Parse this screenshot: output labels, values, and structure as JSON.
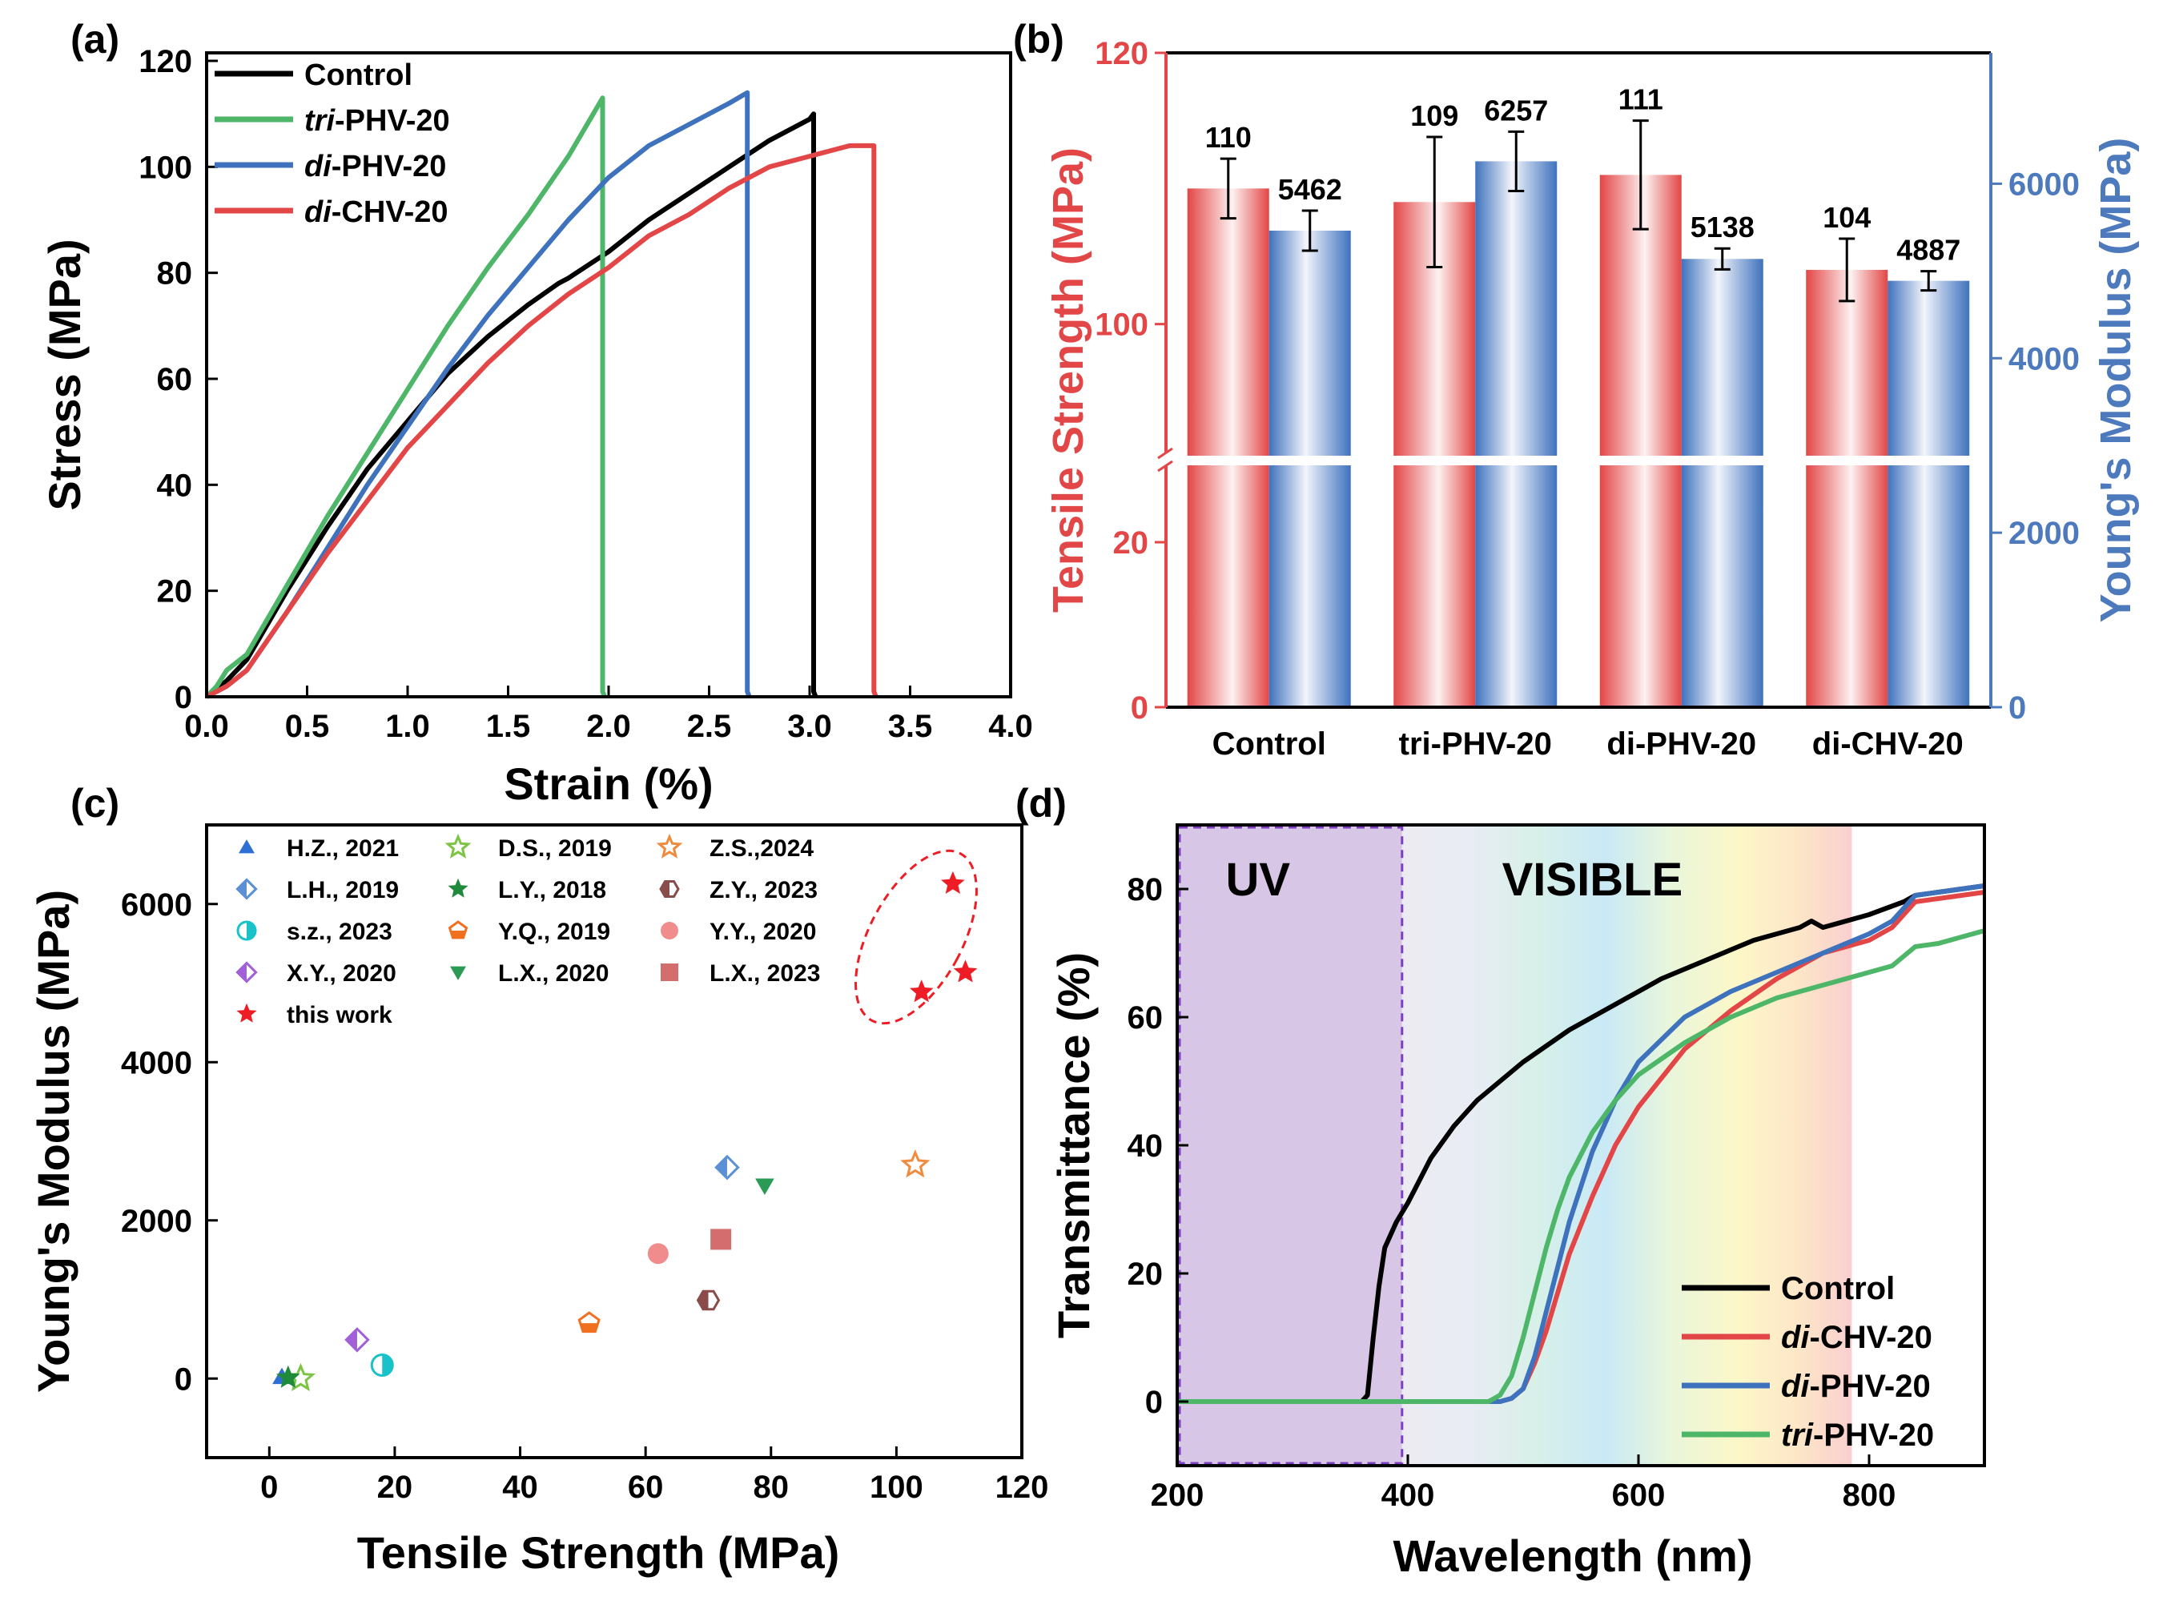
{
  "figure": {
    "panel_labels": [
      "(a)",
      "(b)",
      "(c)",
      "(d)"
    ]
  },
  "colors": {
    "black": "#000000",
    "green": "#4eb668",
    "blue": "#3f72bd",
    "red": "#e34646",
    "right_axis_blue": "#4d79bd",
    "uv_purple": "#d7c6e6",
    "uv_border": "#7b3fc0"
  },
  "chart_data": [
    {
      "id": "a",
      "type": "line",
      "title": "",
      "xlabel": "Strain (%)",
      "ylabel": "Stress (MPa)",
      "xlim": [
        0,
        4
      ],
      "ylim": [
        0,
        120
      ],
      "xticks": [
        0,
        0.5,
        1,
        1.5,
        2,
        2.5,
        3,
        3.5,
        4
      ],
      "xticklabels": [
        "0.0",
        "0.5",
        "1.0",
        "1.5",
        "2.0",
        "2.5",
        "3.0",
        "3.5",
        "4.0"
      ],
      "yticks": [
        0,
        20,
        40,
        60,
        80,
        100,
        120
      ],
      "legend_position": "top-left",
      "series": [
        {
          "name": "Control",
          "name_parts": [
            "",
            "Control"
          ],
          "color": "#000000",
          "x": [
            0,
            0.1,
            0.2,
            0.4,
            0.6,
            0.8,
            1.0,
            1.2,
            1.4,
            1.6,
            1.75,
            1.8,
            2.0,
            2.2,
            2.4,
            2.6,
            2.8,
            3.0,
            3.02,
            3.02,
            3.03
          ],
          "y": [
            0,
            3,
            7,
            20,
            32,
            43,
            52,
            61,
            68,
            74,
            78,
            79,
            84,
            90,
            95,
            100,
            105,
            109,
            110,
            1,
            0
          ]
        },
        {
          "name": "tri-PHV-20",
          "name_parts": [
            "tri",
            "-PHV-20"
          ],
          "color": "#4eb668",
          "x": [
            0,
            0.05,
            0.1,
            0.2,
            0.4,
            0.6,
            0.8,
            1.0,
            1.2,
            1.4,
            1.6,
            1.8,
            1.97,
            1.97,
            1.98
          ],
          "y": [
            0,
            2,
            5,
            8,
            21,
            34,
            46,
            58,
            70,
            81,
            91,
            102,
            113,
            1,
            0
          ]
        },
        {
          "name": "di-PHV-20",
          "name_parts": [
            "di",
            "-PHV-20"
          ],
          "color": "#3f72bd",
          "x": [
            0,
            0.1,
            0.2,
            0.4,
            0.6,
            0.8,
            1.0,
            1.2,
            1.4,
            1.6,
            1.8,
            2.0,
            2.2,
            2.4,
            2.6,
            2.69,
            2.69,
            2.7
          ],
          "y": [
            0,
            2,
            5,
            16,
            28,
            40,
            51,
            62,
            72,
            81,
            90,
            98,
            104,
            108,
            112,
            114,
            1,
            0
          ]
        },
        {
          "name": "di-CHV-20",
          "name_parts": [
            "di",
            "-CHV-20"
          ],
          "color": "#e34646",
          "x": [
            0,
            0.1,
            0.2,
            0.4,
            0.6,
            0.8,
            1.0,
            1.2,
            1.4,
            1.6,
            1.8,
            2.0,
            2.2,
            2.4,
            2.6,
            2.8,
            3.0,
            3.2,
            3.32,
            3.32,
            3.33
          ],
          "y": [
            0,
            2,
            5,
            16,
            27,
            37,
            47,
            55,
            63,
            70,
            76,
            81,
            87,
            91,
            96,
            100,
            102,
            104,
            104,
            1,
            0
          ]
        }
      ]
    },
    {
      "id": "b",
      "type": "bar",
      "categories": [
        "Control",
        "tri-PHV-20",
        "di-PHV-20",
        "di-CHV-20"
      ],
      "ylabel_left": "Tensile Strength (MPa)",
      "ylabel_right": "Young's Modulus (MPa)",
      "ylim_left_lower": [
        0,
        30
      ],
      "ylim_left_upper": [
        90,
        120
      ],
      "yticks_left": [
        0,
        20,
        100,
        120
      ],
      "ylim_right": [
        0,
        7500
      ],
      "yticks_right": [
        0,
        2000,
        4000,
        6000
      ],
      "series": [
        {
          "name": "Tensile Strength",
          "axis": "left",
          "color": "#e34646",
          "values": [
            110,
            109,
            111,
            104
          ],
          "errors": [
            2.2,
            4.8,
            4.0,
            2.3
          ],
          "labels": [
            "110",
            "109",
            "111",
            "104"
          ]
        },
        {
          "name": "Young's Modulus",
          "axis": "right",
          "color": "#3f72bd",
          "values": [
            5462,
            6257,
            5138,
            4887
          ],
          "errors": [
            230,
            340,
            120,
            110
          ],
          "labels": [
            "5462",
            "6257",
            "5138",
            "4887"
          ]
        }
      ]
    },
    {
      "id": "c",
      "type": "scatter",
      "xlabel": "Tensile Strength (MPa)",
      "ylabel": "Young's Modulus (MPa)",
      "xlim": [
        -10,
        120
      ],
      "ylim": [
        -1000,
        7000
      ],
      "xticks": [
        0,
        20,
        40,
        60,
        80,
        100,
        120
      ],
      "yticks": [
        0,
        2000,
        4000,
        6000
      ],
      "legend_position": "top-left",
      "series": [
        {
          "name": "H.Z., 2021",
          "marker": "triangle",
          "color": "#2e6fd6",
          "x": [
            2
          ],
          "y": [
            20
          ]
        },
        {
          "name": "D.S., 2019",
          "marker": "star-open",
          "color": "#7cc443",
          "x": [
            5
          ],
          "y": [
            0
          ]
        },
        {
          "name": "Z.S.,2024",
          "marker": "star-open",
          "color": "#f08a3c",
          "x": [
            103
          ],
          "y": [
            2700
          ]
        },
        {
          "name": "L.H., 2019",
          "marker": "diamond-half",
          "color": "#5b8fd6",
          "x": [
            73
          ],
          "y": [
            2670
          ]
        },
        {
          "name": "L.Y., 2018",
          "marker": "star",
          "color": "#1f8a3a",
          "x": [
            3
          ],
          "y": [
            10
          ]
        },
        {
          "name": "Z.Y., 2023",
          "marker": "hexagon-half",
          "color": "#8a4b4b",
          "x": [
            70
          ],
          "y": [
            990
          ]
        },
        {
          "name": "s.z., 2023",
          "marker": "circle-half",
          "color": "#19c2c8",
          "x": [
            18
          ],
          "y": [
            170
          ]
        },
        {
          "name": "Y.Q., 2019",
          "marker": "pentagon-half",
          "color": "#f07020",
          "x": [
            51
          ],
          "y": [
            700
          ]
        },
        {
          "name": "Y.Y., 2020",
          "marker": "circle",
          "color": "#f08c8c",
          "x": [
            62
          ],
          "y": [
            1580
          ]
        },
        {
          "name": "X.Y., 2020",
          "marker": "diamond-half",
          "color": "#a260d8",
          "x": [
            14
          ],
          "y": [
            490
          ]
        },
        {
          "name": "L.X., 2020",
          "marker": "triangle-down",
          "color": "#2a9a55",
          "x": [
            79
          ],
          "y": [
            2440
          ]
        },
        {
          "name": "L.X., 2023",
          "marker": "square",
          "color": "#d46e6e",
          "x": [
            72
          ],
          "y": [
            1760
          ]
        },
        {
          "name": "this work",
          "marker": "star",
          "color": "#ee1c24",
          "x": [
            109,
            111,
            104
          ],
          "y": [
            6257,
            5138,
            4887
          ]
        }
      ]
    },
    {
      "id": "d",
      "type": "line",
      "xlabel": "Wavelength (nm)",
      "ylabel": "Transmittance (%)",
      "xlim": [
        200,
        900
      ],
      "ylim": [
        -10,
        90
      ],
      "xticks": [
        200,
        400,
        600,
        800
      ],
      "yticks": [
        0,
        20,
        40,
        60,
        80
      ],
      "region_labels": [
        "UV",
        "VISIBLE"
      ],
      "uv_region": [
        200,
        395
      ],
      "visible_region": [
        395,
        785
      ],
      "legend_position": "bottom-right",
      "series": [
        {
          "name": "Control",
          "name_parts": [
            "",
            "Control"
          ],
          "color": "#000000",
          "x": [
            200,
            360,
            365,
            370,
            375,
            380,
            390,
            400,
            420,
            440,
            460,
            480,
            500,
            540,
            580,
            620,
            660,
            700,
            740,
            750,
            760,
            800,
            830,
            840,
            860,
            900
          ],
          "y": [
            0,
            0,
            1,
            10,
            18,
            24,
            28,
            31,
            38,
            43,
            47,
            50,
            53,
            58,
            62,
            66,
            69,
            72,
            74,
            75,
            74,
            76,
            78,
            79,
            79.5,
            80.5
          ]
        },
        {
          "name": "di-CHV-20",
          "name_parts": [
            "di",
            "-CHV-20"
          ],
          "color": "#e34646",
          "x": [
            200,
            480,
            490,
            500,
            510,
            520,
            530,
            540,
            560,
            580,
            600,
            640,
            680,
            720,
            760,
            800,
            820,
            840,
            860,
            900
          ],
          "y": [
            0,
            0,
            0.5,
            2,
            6,
            11,
            17,
            23,
            32,
            40,
            46,
            55,
            61,
            66,
            70,
            72,
            74,
            78,
            78.5,
            79.5
          ]
        },
        {
          "name": "di-PHV-20",
          "name_parts": [
            "di",
            "-PHV-20"
          ],
          "color": "#3f72bd",
          "x": [
            200,
            480,
            490,
            500,
            510,
            520,
            530,
            540,
            560,
            580,
            600,
            640,
            680,
            720,
            760,
            800,
            820,
            840,
            860,
            900
          ],
          "y": [
            0,
            0,
            0.5,
            2,
            7,
            14,
            21,
            28,
            39,
            47,
            53,
            60,
            64,
            67,
            70,
            73,
            75,
            79,
            79.5,
            80.5
          ]
        },
        {
          "name": "tri-PHV-20",
          "name_parts": [
            "tri",
            "-PHV-20"
          ],
          "color": "#4eb668",
          "x": [
            200,
            470,
            480,
            490,
            500,
            510,
            520,
            530,
            540,
            560,
            580,
            600,
            640,
            680,
            720,
            760,
            800,
            820,
            840,
            860,
            900
          ],
          "y": [
            0,
            0,
            1,
            4,
            10,
            17,
            24,
            30,
            35,
            42,
            47,
            51,
            56,
            60,
            63,
            65,
            67,
            68,
            71,
            71.5,
            73.5
          ]
        }
      ]
    }
  ]
}
